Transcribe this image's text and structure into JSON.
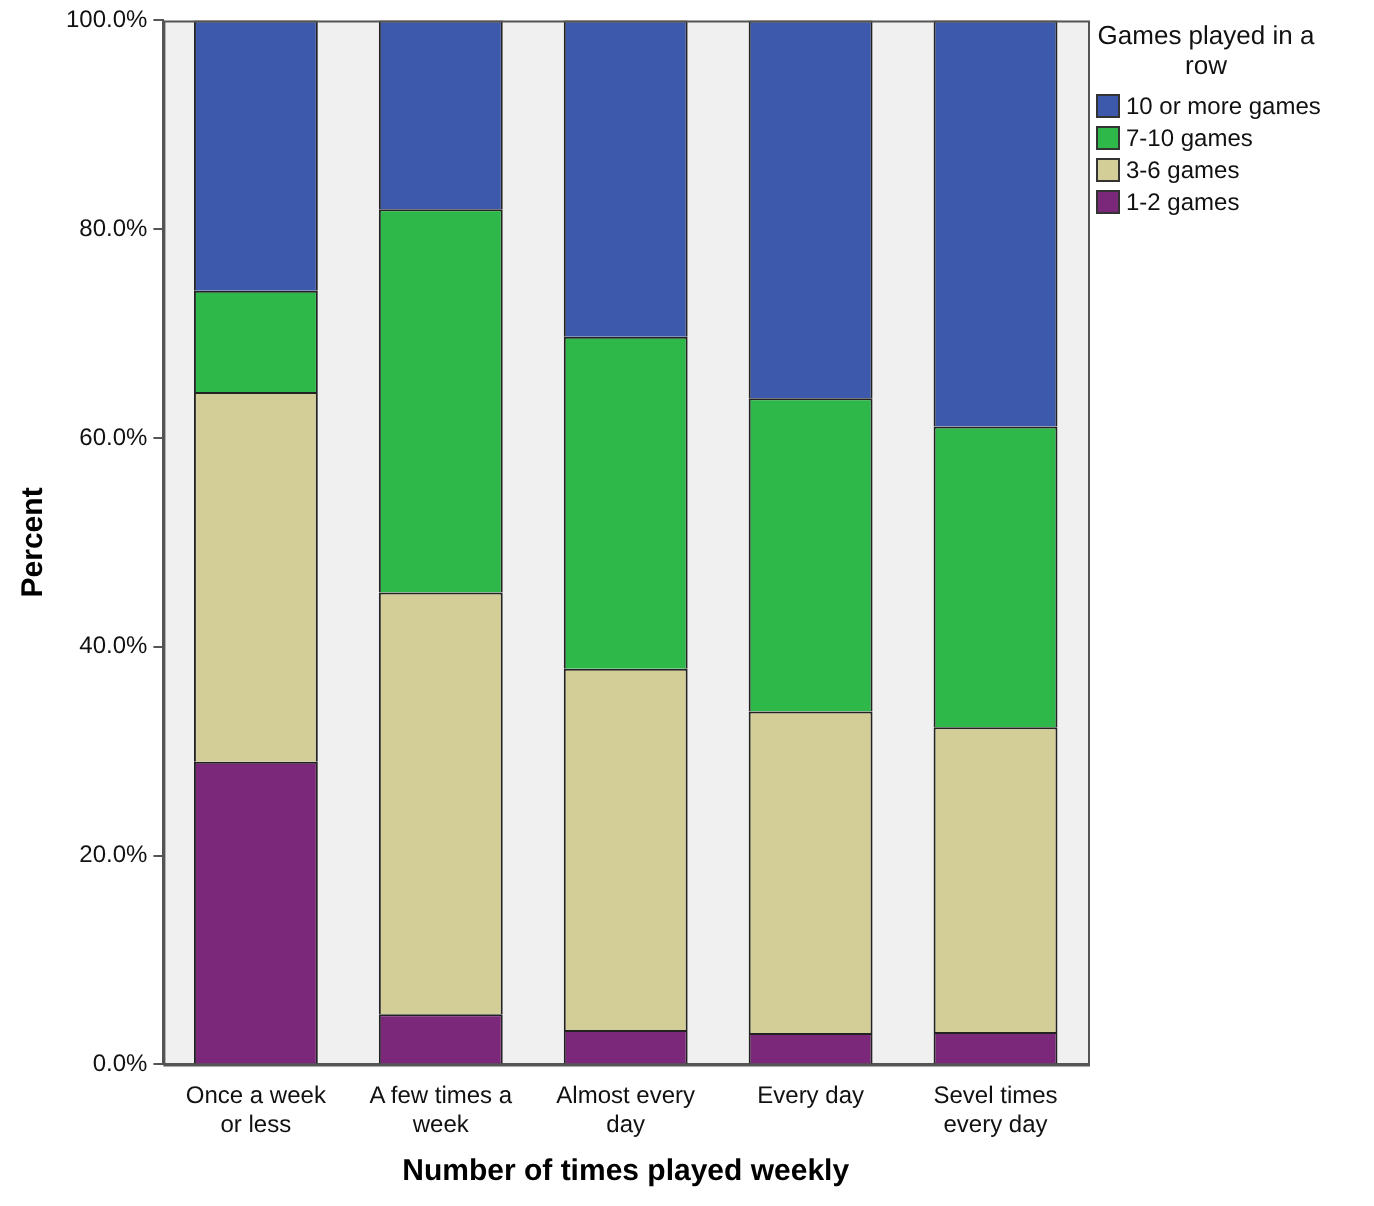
{
  "chart_data": {
    "type": "bar",
    "stacked": true,
    "xlabel": "Number of times played weekly",
    "ylabel": "Percent",
    "legend_title": "Games played in a row",
    "legend": "right",
    "categories": [
      "Once a week or less",
      "A few times a week",
      "Almost every day",
      "Every day",
      "Sevel times every day"
    ],
    "series": [
      {
        "name": "1-2 games",
        "color": "#7b287b",
        "values": [
          29.0,
          4.8,
          3.3,
          3.0,
          3.1
        ]
      },
      {
        "name": "3-6 games",
        "color": "#d3ce98",
        "values": [
          35.4,
          40.4,
          34.6,
          30.8,
          29.2
        ]
      },
      {
        "name": "7-10 games",
        "color": "#2fb84a",
        "values": [
          9.7,
          36.7,
          31.8,
          30.0,
          28.8
        ]
      },
      {
        "name": "10 or more games",
        "color": "#3d59ab",
        "values": [
          25.9,
          18.1,
          30.3,
          36.2,
          38.9
        ]
      }
    ],
    "ylim": [
      0,
      100
    ],
    "yticks": [
      {
        "value": 0,
        "label": "0.0%"
      },
      {
        "value": 20,
        "label": "20.0%"
      },
      {
        "value": 40,
        "label": "40.0%"
      },
      {
        "value": 60,
        "label": "60.0%"
      },
      {
        "value": 80,
        "label": "80.0%"
      },
      {
        "value": 100,
        "label": "100.0%"
      }
    ],
    "grid": false
  }
}
